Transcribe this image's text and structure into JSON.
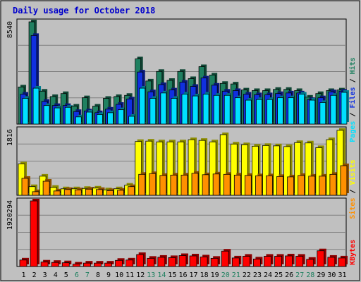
{
  "title": "Daily usage for October 2018",
  "colors": {
    "background": "#c0c0c0",
    "title": "#0000cc",
    "pages": "#00e0ff",
    "files": "#1030e0",
    "hits": "#1f8060",
    "visits": "#ffff00",
    "sites": "#ff9000",
    "kbytes": "#ff0000",
    "weekend_day": "#1f8060",
    "weekday": "#000000"
  },
  "chart_data": [
    {
      "type": "bar",
      "panel": "usage",
      "ymax_label": "8540",
      "ylim": [
        0,
        8540
      ],
      "legend": [
        "Pages",
        "/",
        "Files",
        "/",
        "Hits"
      ],
      "categories": [
        "1",
        "2",
        "3",
        "4",
        "5",
        "6",
        "7",
        "8",
        "9",
        "10",
        "11",
        "12",
        "13",
        "14",
        "15",
        "16",
        "17",
        "18",
        "19",
        "20",
        "21",
        "22",
        "23",
        "24",
        "25",
        "26",
        "27",
        "28",
        "29",
        "30",
        "31"
      ],
      "weekend_days": [
        "6",
        "7",
        "13",
        "14",
        "20",
        "21",
        "27",
        "28"
      ],
      "series": [
        {
          "name": "Hits",
          "values": [
            3100,
            8540,
            2750,
            2300,
            2550,
            1500,
            2200,
            1500,
            2150,
            2300,
            2400,
            5450,
            3600,
            4400,
            3650,
            4400,
            3800,
            4800,
            4100,
            3400,
            3350,
            2850,
            2800,
            2800,
            2900,
            2900,
            2800,
            2250,
            2550,
            2800,
            2850
          ]
        },
        {
          "name": "Files",
          "values": [
            2500,
            7400,
            1900,
            1550,
            1550,
            1050,
            1100,
            950,
            1250,
            1650,
            2100,
            4350,
            2700,
            3300,
            2850,
            3500,
            3150,
            3850,
            3250,
            2750,
            2800,
            2500,
            2450,
            2450,
            2550,
            2600,
            2600,
            2050,
            2200,
            2700,
            2750
          ]
        },
        {
          "name": "Pages",
          "values": [
            2150,
            3000,
            1550,
            1350,
            1400,
            600,
            1000,
            800,
            950,
            1200,
            650,
            3000,
            2150,
            2600,
            2150,
            2500,
            2350,
            2500,
            2400,
            2400,
            2200,
            2000,
            2050,
            2050,
            2200,
            2200,
            2500,
            2000,
            1800,
            2400,
            2650
          ]
        }
      ]
    },
    {
      "type": "bar",
      "panel": "visits",
      "ymax_label": "1816",
      "ylim": [
        0,
        1816
      ],
      "legend": [
        "Sites",
        "/",
        "Visits"
      ],
      "categories": [
        "1",
        "2",
        "3",
        "4",
        "5",
        "6",
        "7",
        "8",
        "9",
        "10",
        "11",
        "12",
        "13",
        "14",
        "15",
        "16",
        "17",
        "18",
        "19",
        "20",
        "21",
        "22",
        "23",
        "24",
        "25",
        "26",
        "27",
        "28",
        "29",
        "30",
        "31"
      ],
      "series": [
        {
          "name": "Visits",
          "values": [
            870,
            240,
            530,
            220,
            180,
            180,
            190,
            200,
            150,
            180,
            280,
            1490,
            1500,
            1480,
            1480,
            1480,
            1540,
            1520,
            1480,
            1680,
            1420,
            1400,
            1360,
            1380,
            1370,
            1350,
            1460,
            1450,
            1320,
            1540,
            1800
          ]
        },
        {
          "name": "Sites",
          "values": [
            470,
            100,
            390,
            120,
            160,
            150,
            170,
            160,
            130,
            140,
            240,
            580,
            600,
            550,
            560,
            560,
            610,
            570,
            590,
            580,
            560,
            550,
            540,
            540,
            520,
            510,
            550,
            530,
            530,
            580,
            820
          ]
        }
      ]
    },
    {
      "type": "bar",
      "panel": "kbytes",
      "ymax_label": "1920294",
      "ylim": [
        0,
        1920294
      ],
      "legend": [
        "KBytes"
      ],
      "categories": [
        "1",
        "2",
        "3",
        "4",
        "5",
        "6",
        "7",
        "8",
        "9",
        "10",
        "11",
        "12",
        "13",
        "14",
        "15",
        "16",
        "17",
        "18",
        "19",
        "20",
        "21",
        "22",
        "23",
        "24",
        "25",
        "26",
        "27",
        "28",
        "29",
        "30",
        "31"
      ],
      "series": [
        {
          "name": "KBytes",
          "values": [
            190000,
            1920294,
            130000,
            120000,
            110000,
            70000,
            100000,
            100000,
            100000,
            180000,
            190000,
            350000,
            240000,
            270000,
            260000,
            320000,
            310000,
            280000,
            240000,
            450000,
            250000,
            300000,
            220000,
            300000,
            300000,
            310000,
            300000,
            210000,
            460000,
            270000,
            250000
          ]
        }
      ]
    }
  ]
}
